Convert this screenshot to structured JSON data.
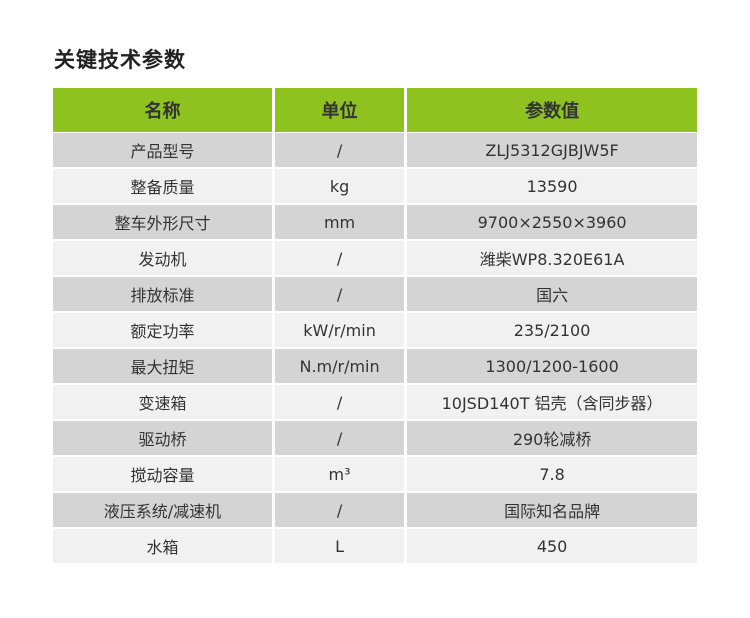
{
  "section_title": "关键技术参数",
  "table": {
    "headers": [
      "名称",
      "单位",
      "参数值"
    ],
    "rows": [
      [
        "产品型号",
        "/",
        "ZLJ5312GJBJW5F"
      ],
      [
        "整备质量",
        "kg",
        "13590"
      ],
      [
        "整车外形尺寸",
        "mm",
        "9700×2550×3960"
      ],
      [
        "发动机",
        "/",
        "潍柴WP8.320E61A"
      ],
      [
        "排放标准",
        "/",
        "国六"
      ],
      [
        "额定功率",
        "kW/r/min",
        "235/2100"
      ],
      [
        "最大扭矩",
        "N.m/r/min",
        "1300/1200-1600"
      ],
      [
        "变速箱",
        "/",
        "10JSD140T 铝壳（含同步器）"
      ],
      [
        "驱动桥",
        "/",
        "290轮减桥"
      ],
      [
        "搅动容量",
        "m³",
        "7.8"
      ],
      [
        "液压系统/减速机",
        "/",
        "国际知名品牌"
      ],
      [
        "水箱",
        "L",
        "450"
      ]
    ]
  },
  "colors": {
    "header_bg": "#8dc21f",
    "row_dark": "#d4d4d4",
    "row_light": "#f1f1f1"
  }
}
